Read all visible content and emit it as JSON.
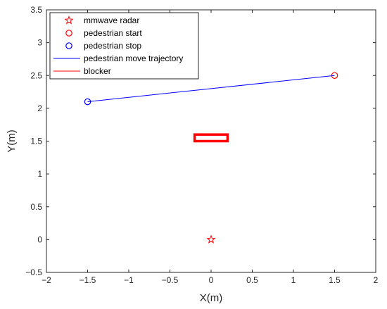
{
  "chart_data": {
    "type": "scatter",
    "xlabel": "X(m)",
    "ylabel": "Y(m)",
    "xlim": [
      -2,
      2
    ],
    "ylim": [
      -0.5,
      3.5
    ],
    "xticks": [
      -2,
      -1.5,
      -1,
      -0.5,
      0,
      0.5,
      1,
      1.5,
      2
    ],
    "yticks": [
      -0.5,
      0,
      0.5,
      1,
      1.5,
      2,
      2.5,
      3,
      3.5
    ],
    "grid": false,
    "legend_position": "top-left",
    "series": [
      {
        "name": "mmwave radar",
        "marker": "star",
        "color": "#ff0000",
        "points": [
          {
            "x": 0,
            "y": 0
          }
        ]
      },
      {
        "name": "pedestrian start",
        "marker": "circle",
        "color": "#ff0000",
        "points": [
          {
            "x": 1.5,
            "y": 2.5
          }
        ]
      },
      {
        "name": "pedestrian stop",
        "marker": "circle",
        "color": "#0000ff",
        "points": [
          {
            "x": -1.5,
            "y": 2.1
          }
        ]
      },
      {
        "name": "pedestrian move trajectory",
        "marker": "line",
        "color": "#0000ff",
        "points": [
          {
            "x": 1.5,
            "y": 2.5
          },
          {
            "x": -1.5,
            "y": 2.1
          }
        ]
      },
      {
        "name": "blocker",
        "marker": "rectangle",
        "color": "#ff0000",
        "rect": {
          "x": [
            -0.2,
            0.2
          ],
          "y": [
            1.5,
            1.6
          ]
        }
      }
    ]
  }
}
